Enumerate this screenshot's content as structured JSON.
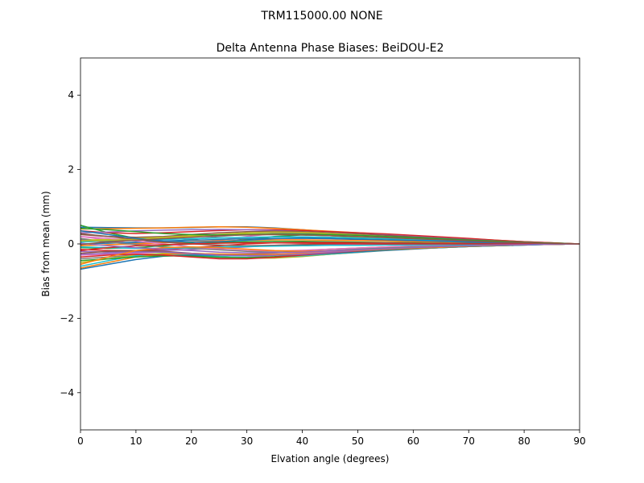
{
  "suptitle": "TRM115000.00    NONE",
  "chart_data": {
    "type": "line",
    "title": "Delta Antenna Phase Biases: BeiDOU-E2",
    "xlabel": "Elvation angle (degrees)",
    "ylabel": "Bias from mean (mm)",
    "xlim": [
      0,
      90
    ],
    "ylim": [
      -5,
      5
    ],
    "xticks": [
      0,
      10,
      20,
      30,
      40,
      50,
      60,
      70,
      80,
      90
    ],
    "yticks": [
      -4,
      -2,
      0,
      2,
      4
    ],
    "ytick_labels": [
      "−4",
      "−2",
      "0",
      "2",
      "4"
    ],
    "grid": false,
    "x": [
      0,
      5,
      10,
      15,
      20,
      25,
      30,
      35,
      40,
      45,
      50,
      55,
      60,
      65,
      70,
      75,
      80,
      85,
      90
    ],
    "colors": [
      "#1f77b4",
      "#ff7f0e",
      "#2ca02c",
      "#d62728",
      "#9467bd",
      "#8c564b",
      "#e377c2",
      "#7f7f7f",
      "#bcbd22",
      "#17becf"
    ],
    "series": [
      {
        "values": [
          0.45,
          0.44,
          0.43,
          0.43,
          0.44,
          0.46,
          0.46,
          0.43,
          0.38,
          0.33,
          0.29,
          0.25,
          0.21,
          0.17,
          0.13,
          0.09,
          0.06,
          0.03,
          0.0
        ]
      },
      {
        "values": [
          0.4,
          0.41,
          0.42,
          0.43,
          0.45,
          0.46,
          0.45,
          0.42,
          0.38,
          0.34,
          0.3,
          0.26,
          0.22,
          0.18,
          0.14,
          0.1,
          0.06,
          0.03,
          0.0
        ]
      },
      {
        "values": [
          0.5,
          0.3,
          0.15,
          0.05,
          0.02,
          0.05,
          0.12,
          0.2,
          0.24,
          0.22,
          0.18,
          0.15,
          0.12,
          0.09,
          0.07,
          0.05,
          0.03,
          0.01,
          0.0
        ]
      },
      {
        "values": [
          0.35,
          0.3,
          0.28,
          0.3,
          0.33,
          0.36,
          0.38,
          0.38,
          0.36,
          0.33,
          0.3,
          0.27,
          0.23,
          0.19,
          0.15,
          0.1,
          0.06,
          0.03,
          0.0
        ]
      },
      {
        "values": [
          0.3,
          0.32,
          0.35,
          0.37,
          0.38,
          0.39,
          0.38,
          0.36,
          0.33,
          0.3,
          0.27,
          0.24,
          0.2,
          0.16,
          0.12,
          0.08,
          0.05,
          0.02,
          0.0
        ]
      },
      {
        "values": [
          0.25,
          0.2,
          0.18,
          0.2,
          0.25,
          0.3,
          0.33,
          0.34,
          0.33,
          0.3,
          0.27,
          0.23,
          0.19,
          0.15,
          0.11,
          0.08,
          0.05,
          0.02,
          0.0
        ]
      },
      {
        "values": [
          0.2,
          0.1,
          0.0,
          -0.05,
          0.0,
          0.1,
          0.2,
          0.28,
          0.3,
          0.28,
          0.24,
          0.2,
          0.16,
          0.12,
          0.09,
          0.06,
          0.03,
          0.01,
          0.0
        ]
      },
      {
        "values": [
          0.15,
          0.05,
          0.02,
          0.05,
          0.12,
          0.2,
          0.26,
          0.29,
          0.29,
          0.27,
          0.24,
          0.2,
          0.16,
          0.12,
          0.09,
          0.06,
          0.03,
          0.01,
          0.0
        ]
      },
      {
        "values": [
          0.1,
          0.12,
          0.15,
          0.18,
          0.22,
          0.25,
          0.27,
          0.27,
          0.25,
          0.22,
          0.19,
          0.16,
          0.13,
          0.1,
          0.07,
          0.05,
          0.03,
          0.01,
          0.0
        ]
      },
      {
        "values": [
          0.05,
          0.08,
          0.1,
          0.12,
          0.14,
          0.16,
          0.18,
          0.19,
          0.19,
          0.18,
          0.16,
          0.14,
          0.11,
          0.09,
          0.06,
          0.04,
          0.02,
          0.01,
          0.0
        ]
      },
      {
        "values": [
          0.0,
          0.02,
          0.05,
          0.08,
          0.1,
          0.12,
          0.14,
          0.15,
          0.15,
          0.14,
          0.12,
          0.1,
          0.08,
          0.06,
          0.04,
          0.03,
          0.02,
          0.01,
          0.0
        ]
      },
      {
        "values": [
          -0.05,
          -0.02,
          0.0,
          0.03,
          0.06,
          0.08,
          0.1,
          0.11,
          0.11,
          0.1,
          0.09,
          0.08,
          0.06,
          0.05,
          0.03,
          0.02,
          0.01,
          0.0,
          0.0
        ]
      },
      {
        "values": [
          -0.1,
          -0.12,
          -0.1,
          -0.05,
          0.0,
          0.04,
          0.06,
          0.07,
          0.07,
          0.06,
          0.05,
          0.04,
          0.03,
          0.02,
          0.01,
          0.01,
          0.0,
          0.0,
          0.0
        ]
      },
      {
        "values": [
          -0.15,
          -0.18,
          -0.18,
          -0.15,
          -0.1,
          -0.05,
          0.0,
          0.03,
          0.04,
          0.04,
          0.03,
          0.03,
          0.02,
          0.01,
          0.01,
          0.0,
          0.0,
          0.0,
          0.0
        ]
      },
      {
        "values": [
          -0.2,
          -0.22,
          -0.2,
          -0.18,
          -0.15,
          -0.12,
          -0.08,
          -0.04,
          -0.02,
          -0.01,
          0.0,
          0.0,
          0.0,
          0.0,
          0.0,
          0.0,
          0.0,
          0.0,
          0.0
        ]
      },
      {
        "values": [
          -0.25,
          -0.2,
          -0.18,
          -0.2,
          -0.25,
          -0.28,
          -0.28,
          -0.24,
          -0.18,
          -0.14,
          -0.11,
          -0.08,
          -0.06,
          -0.05,
          -0.03,
          -0.02,
          -0.01,
          0.0,
          0.0
        ]
      },
      {
        "values": [
          -0.3,
          -0.28,
          -0.25,
          -0.27,
          -0.32,
          -0.38,
          -0.36,
          -0.3,
          -0.24,
          -0.2,
          -0.16,
          -0.12,
          -0.09,
          -0.07,
          -0.05,
          -0.03,
          -0.02,
          -0.01,
          0.0
        ]
      },
      {
        "values": [
          -0.4,
          -0.35,
          -0.3,
          -0.3,
          -0.32,
          -0.35,
          -0.37,
          -0.36,
          -0.33,
          -0.28,
          -0.23,
          -0.18,
          -0.14,
          -0.1,
          -0.07,
          -0.05,
          -0.03,
          -0.01,
          0.0
        ]
      },
      {
        "values": [
          -0.5,
          -0.4,
          -0.3,
          -0.25,
          -0.28,
          -0.33,
          -0.38,
          -0.38,
          -0.34,
          -0.28,
          -0.22,
          -0.17,
          -0.13,
          -0.1,
          -0.07,
          -0.05,
          -0.03,
          -0.01,
          0.0
        ]
      },
      {
        "values": [
          -0.6,
          -0.45,
          -0.32,
          -0.28,
          -0.3,
          -0.34,
          -0.36,
          -0.35,
          -0.32,
          -0.27,
          -0.22,
          -0.17,
          -0.13,
          -0.1,
          -0.07,
          -0.05,
          -0.03,
          -0.01,
          0.0
        ]
      },
      {
        "values": [
          -0.68,
          -0.55,
          -0.42,
          -0.33,
          -0.3,
          -0.3,
          -0.31,
          -0.3,
          -0.28,
          -0.25,
          -0.21,
          -0.17,
          -0.13,
          -0.1,
          -0.07,
          -0.05,
          -0.03,
          -0.01,
          0.0
        ]
      },
      {
        "values": [
          -0.65,
          -0.5,
          -0.35,
          -0.28,
          -0.26,
          -0.27,
          -0.28,
          -0.28,
          -0.26,
          -0.23,
          -0.19,
          -0.15,
          -0.12,
          -0.09,
          -0.06,
          -0.04,
          -0.02,
          -0.01,
          0.0
        ]
      },
      {
        "values": [
          -0.45,
          -0.4,
          -0.35,
          -0.32,
          -0.33,
          -0.36,
          -0.37,
          -0.34,
          -0.29,
          -0.24,
          -0.19,
          -0.15,
          -0.11,
          -0.08,
          -0.06,
          -0.04,
          -0.02,
          -0.01,
          0.0
        ]
      },
      {
        "values": [
          -0.35,
          -0.3,
          -0.28,
          -0.3,
          -0.35,
          -0.4,
          -0.4,
          -0.36,
          -0.3,
          -0.24,
          -0.19,
          -0.14,
          -0.1,
          -0.07,
          -0.05,
          -0.03,
          -0.02,
          -0.01,
          0.0
        ]
      },
      {
        "values": [
          -0.28,
          -0.25,
          -0.22,
          -0.22,
          -0.26,
          -0.3,
          -0.32,
          -0.31,
          -0.28,
          -0.23,
          -0.18,
          -0.14,
          -0.1,
          -0.07,
          -0.05,
          -0.03,
          -0.02,
          -0.01,
          0.0
        ]
      },
      {
        "values": [
          0.28,
          0.2,
          0.12,
          0.05,
          0.0,
          -0.03,
          -0.05,
          -0.04,
          -0.02,
          0.0,
          0.01,
          0.02,
          0.02,
          0.02,
          0.01,
          0.01,
          0.0,
          0.0,
          0.0
        ]
      },
      {
        "values": [
          0.2,
          0.15,
          0.08,
          0.0,
          -0.08,
          -0.14,
          -0.18,
          -0.19,
          -0.17,
          -0.14,
          -0.11,
          -0.08,
          -0.06,
          -0.04,
          -0.03,
          -0.02,
          -0.01,
          0.0,
          0.0
        ]
      },
      {
        "values": [
          0.12,
          0.05,
          -0.02,
          -0.08,
          -0.12,
          -0.16,
          -0.2,
          -0.22,
          -0.21,
          -0.18,
          -0.14,
          -0.11,
          -0.08,
          -0.06,
          -0.04,
          -0.03,
          -0.02,
          -0.01,
          0.0
        ]
      },
      {
        "values": [
          0.08,
          0.1,
          0.12,
          0.15,
          0.2,
          0.26,
          0.3,
          0.32,
          0.31,
          0.28,
          0.24,
          0.2,
          0.16,
          0.12,
          0.09,
          0.06,
          0.03,
          0.01,
          0.0
        ]
      },
      {
        "values": [
          -0.08,
          -0.1,
          -0.12,
          -0.12,
          -0.1,
          -0.08,
          -0.07,
          -0.06,
          -0.05,
          -0.04,
          -0.04,
          -0.03,
          -0.03,
          -0.02,
          -0.02,
          -0.01,
          -0.01,
          0.0,
          0.0
        ]
      },
      {
        "values": [
          0.35,
          0.25,
          0.15,
          0.08,
          0.05,
          0.06,
          0.1,
          0.14,
          0.16,
          0.15,
          0.13,
          0.11,
          0.09,
          0.07,
          0.05,
          0.03,
          0.02,
          0.01,
          0.0
        ]
      },
      {
        "values": [
          -0.55,
          -0.35,
          -0.18,
          -0.1,
          -0.08,
          -0.1,
          -0.14,
          -0.18,
          -0.2,
          -0.19,
          -0.17,
          -0.14,
          -0.11,
          -0.08,
          -0.06,
          -0.04,
          -0.02,
          -0.01,
          0.0
        ]
      },
      {
        "values": [
          0.42,
          0.38,
          0.33,
          0.28,
          0.25,
          0.24,
          0.25,
          0.26,
          0.26,
          0.25,
          0.23,
          0.2,
          0.17,
          0.14,
          0.1,
          0.07,
          0.04,
          0.02,
          0.0
        ]
      },
      {
        "values": [
          -0.18,
          -0.1,
          -0.05,
          -0.02,
          0.0,
          0.02,
          0.03,
          0.03,
          0.02,
          0.01,
          0.0,
          0.0,
          0.0,
          0.0,
          0.0,
          0.0,
          0.0,
          0.0,
          0.0
        ]
      },
      {
        "values": [
          0.02,
          -0.05,
          -0.1,
          -0.14,
          -0.18,
          -0.22,
          -0.24,
          -0.24,
          -0.22,
          -0.19,
          -0.16,
          -0.13,
          -0.1,
          -0.07,
          -0.05,
          -0.03,
          -0.02,
          -0.01,
          0.0
        ]
      },
      {
        "values": [
          -0.02,
          0.06,
          0.1,
          0.14,
          0.18,
          0.22,
          0.24,
          0.25,
          0.24,
          0.22,
          0.2,
          0.17,
          0.14,
          0.11,
          0.08,
          0.05,
          0.03,
          0.01,
          0.0
        ]
      }
    ]
  }
}
